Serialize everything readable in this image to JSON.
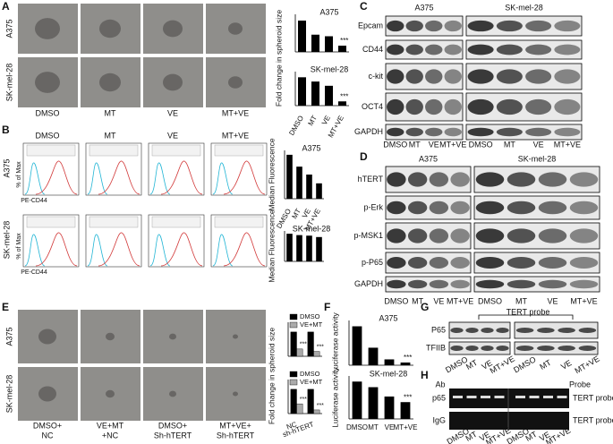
{
  "panels": {
    "letters": [
      "A",
      "B",
      "C",
      "D",
      "E",
      "F",
      "G",
      "H"
    ]
  },
  "spheroid_images": {
    "rows": [
      "A375",
      "SK-mel-28"
    ],
    "columns": [
      "DMSO",
      "MT",
      "VE",
      "MT+VE"
    ]
  },
  "flow": {
    "rows": [
      "A375",
      "SK-mel-28"
    ],
    "columns": [
      "DMSO",
      "MT",
      "VE",
      "MT+VE"
    ],
    "x_label": "PE-CD44",
    "y_label": "% of Max"
  },
  "blot_c": {
    "groups": [
      "A375",
      "SK-mel-28"
    ],
    "proteins": [
      "Epcam",
      "CD44",
      "c-kit",
      "OCT4",
      "GAPDH"
    ],
    "lanes": [
      "DMSO",
      "MT",
      "VE",
      "MT+VE"
    ]
  },
  "blot_d": {
    "groups": [
      "A375",
      "SK-mel-28"
    ],
    "proteins": [
      "hTERT",
      "p-Erk",
      "p-MSK1",
      "p-P65",
      "GAPDH"
    ],
    "lanes": [
      "DMSO",
      "MT",
      "VE",
      "MT+VE"
    ]
  },
  "knockdown_images": {
    "rows": [
      "A375",
      "SK-mel-28"
    ],
    "columns": [
      [
        "DMSO+",
        "NC"
      ],
      [
        "VE+MT",
        "+NC"
      ],
      [
        "DMSO+",
        "Sh-hTERT"
      ],
      [
        "MT+VE+",
        "Sh-hTERT"
      ]
    ]
  },
  "emsa_g": {
    "probe": "TERT probe",
    "proteins": [
      "P65",
      "TFIIB"
    ],
    "lanes": [
      "DMSO",
      "MT",
      "VE",
      "MT+VE"
    ]
  },
  "chip_h": {
    "ab": "Ab",
    "probe": "Probe",
    "rows": [
      "p65",
      "IgG"
    ],
    "row_labels": [
      "TERT probe",
      "TERT probe"
    ],
    "lanes": [
      "DMSO",
      "MT",
      "VE",
      "MT+VE"
    ]
  },
  "chart_data": [
    {
      "type": "bar",
      "title": "A375",
      "y_label": "Fold change in spheroid size",
      "categories": [
        null,
        null,
        null,
        null
      ],
      "values": [
        1.0,
        0.55,
        0.5,
        0.2
      ],
      "color": "#000000",
      "ylim": [
        0,
        1.2
      ],
      "annotation": "***"
    },
    {
      "type": "bar",
      "title": "SK-mel-28",
      "categories": [
        "DMSO",
        "MT",
        "VE",
        "MT+VE"
      ],
      "values": [
        1.0,
        0.85,
        0.7,
        0.15
      ],
      "color": "#000000",
      "ylim": [
        0,
        1.2
      ],
      "annotation": "***"
    },
    {
      "type": "bar",
      "title": "A375",
      "y_label": "Median Fluorescence",
      "categories": [
        "DMSO",
        "MT",
        "VE",
        "MT+VE"
      ],
      "values": [
        1.0,
        0.73,
        0.55,
        0.35
      ],
      "color": "#000000",
      "ylim": [
        0,
        1.1
      ]
    },
    {
      "type": "bar",
      "title": "SK-mel-28",
      "y_label": "Median Fluorescence",
      "categories": [
        null,
        null,
        null,
        null
      ],
      "values": [
        1.0,
        0.95,
        0.93,
        0.88
      ],
      "color": "#000000",
      "ylim": [
        0,
        1.1
      ]
    },
    {
      "type": "grouped",
      "y_label": "Fold change in spheroid size",
      "categories": [
        null,
        null
      ],
      "series": [
        {
          "name": "DMSO",
          "color": "#000000",
          "values": [
            1.0,
            1.0
          ]
        },
        {
          "name": "VE+MT",
          "color": "#aaaaaa",
          "values": [
            0.3,
            0.2
          ]
        }
      ],
      "ylim": [
        0,
        1.4
      ],
      "annotation": "***"
    },
    {
      "type": "grouped",
      "categories": [
        "NC",
        "sh-hTERT"
      ],
      "series": [
        {
          "name": "DMSO",
          "color": "#000000",
          "values": [
            1.0,
            1.0
          ]
        },
        {
          "name": "VE+MT",
          "color": "#aaaaaa",
          "values": [
            0.4,
            0.15
          ]
        }
      ],
      "ylim": [
        0,
        1.4
      ],
      "annotation": "***"
    },
    {
      "type": "bar",
      "title": "A375",
      "y_label": "Luciferase activity",
      "categories": [
        null,
        null,
        null,
        null
      ],
      "values": [
        1.0,
        0.45,
        0.15,
        0.07
      ],
      "color": "#000000",
      "ylim": [
        0,
        1.15
      ],
      "annotation": "***"
    },
    {
      "type": "bar",
      "title": "SK-mel-28",
      "y_label": "Luciferase activity",
      "categories": [
        "DMSO",
        "MT",
        "VE",
        "MT+VE"
      ],
      "values": [
        1.0,
        0.85,
        0.6,
        0.45
      ],
      "color": "#000000",
      "ylim": [
        0,
        1.15
      ],
      "annotation": "***"
    }
  ]
}
